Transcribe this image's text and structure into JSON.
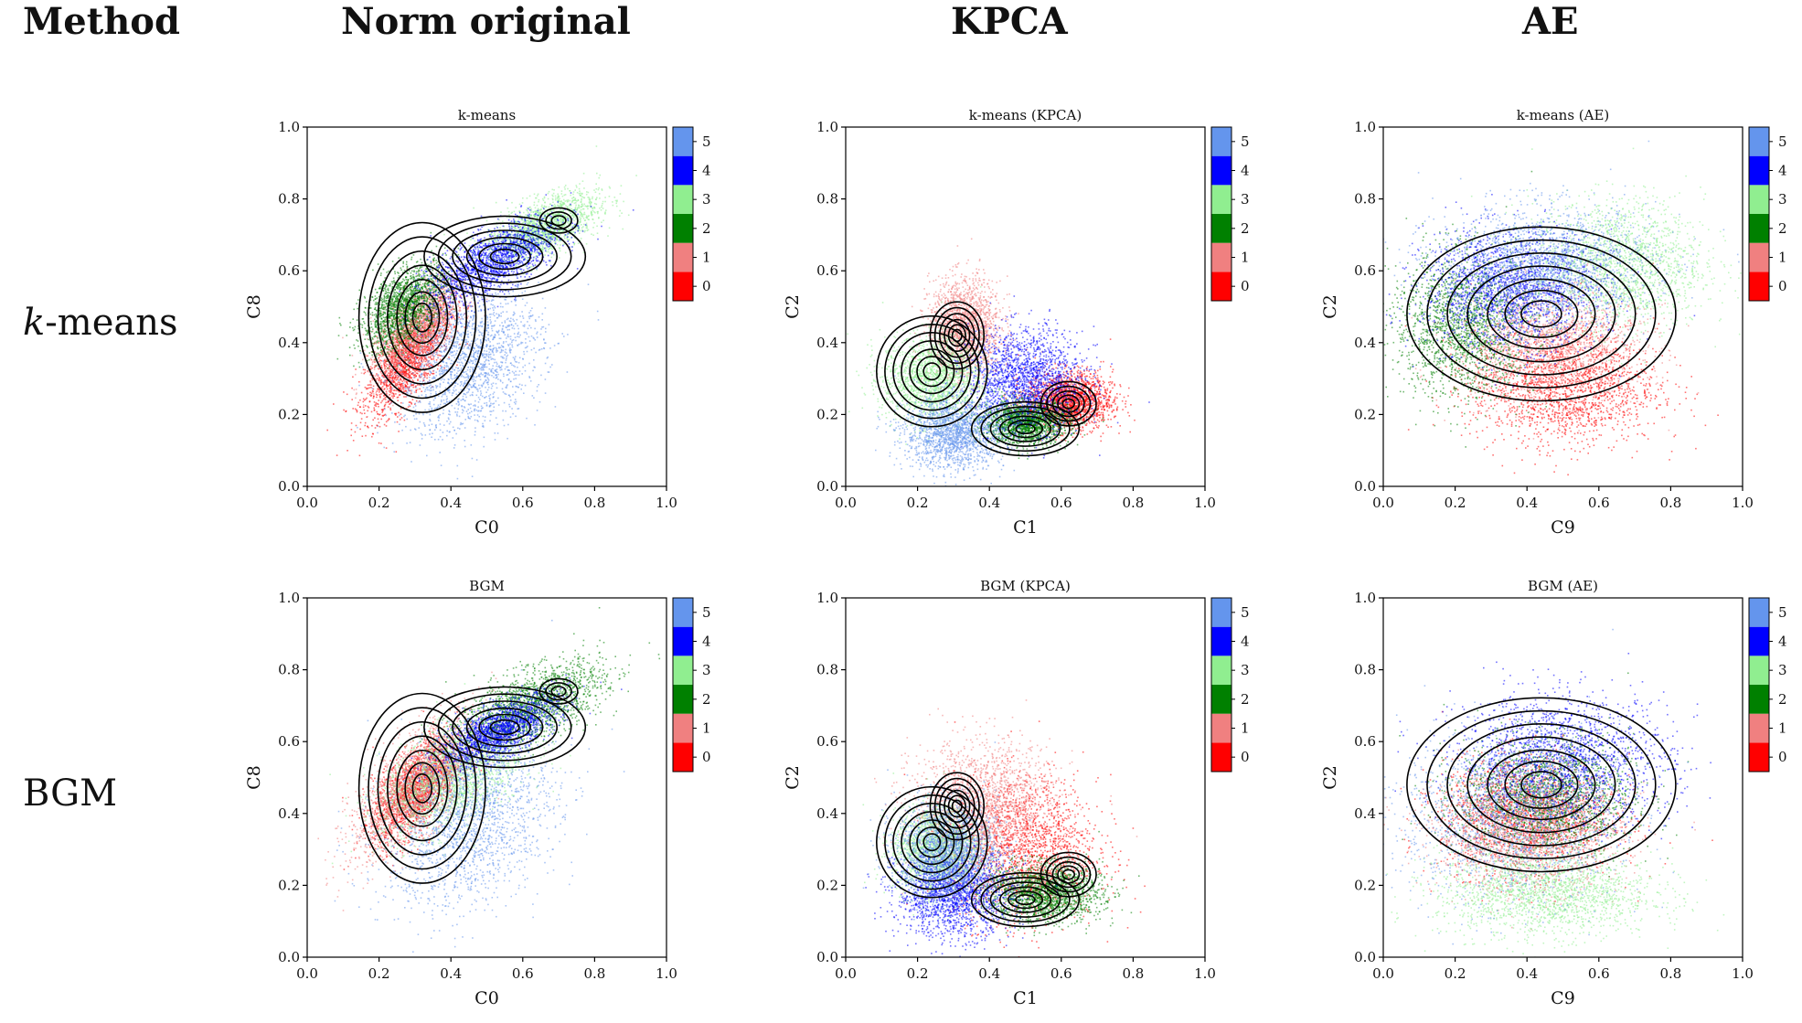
{
  "header": {
    "method": "Method",
    "columns": [
      "Norm original",
      "KPCA",
      "AE"
    ]
  },
  "rows": [
    {
      "label_italic": "k",
      "label_rest": "-means"
    },
    {
      "label_italic": "",
      "label_rest": "BGM"
    }
  ],
  "colorbar": {
    "ticks": [
      "0",
      "1",
      "2",
      "3",
      "4",
      "5"
    ],
    "colors": [
      "#ff0000",
      "#f08080",
      "#008000",
      "#90ee90",
      "#0000ff",
      "#6495ed"
    ]
  },
  "chart_data": [
    {
      "type": "scatter",
      "title": "k-means",
      "xlabel": "C0",
      "ylabel": "C8",
      "xlim": [
        0,
        1
      ],
      "ylim": [
        0,
        1
      ],
      "xticks": [
        "0.0",
        "0.2",
        "0.4",
        "0.6",
        "0.8",
        "1.0"
      ],
      "yticks": [
        "0.0",
        "0.2",
        "0.4",
        "0.6",
        "0.8",
        "1.0"
      ],
      "clusters": [
        {
          "label": "0",
          "center": [
            0.28,
            0.36
          ],
          "spread": [
            0.06,
            0.08
          ],
          "corr": 0.7
        },
        {
          "label": "1",
          "center": [
            0.3,
            0.44
          ],
          "spread": [
            0.06,
            0.07
          ],
          "corr": 0.6
        },
        {
          "label": "2",
          "center": [
            0.27,
            0.5
          ],
          "spread": [
            0.06,
            0.06
          ],
          "corr": 0.5
        },
        {
          "label": "3",
          "center": [
            0.65,
            0.72
          ],
          "spread": [
            0.08,
            0.05
          ],
          "corr": 0.6
        },
        {
          "label": "4",
          "center": [
            0.52,
            0.63
          ],
          "spread": [
            0.09,
            0.06
          ],
          "corr": 0.7
        },
        {
          "label": "5",
          "center": [
            0.45,
            0.35
          ],
          "spread": [
            0.1,
            0.1
          ],
          "corr": 0.3
        }
      ],
      "density_peaks": [
        {
          "center": [
            0.32,
            0.47
          ],
          "spread": [
            0.08,
            0.12
          ],
          "weight": 1.0
        },
        {
          "center": [
            0.55,
            0.64
          ],
          "spread": [
            0.12,
            0.06
          ],
          "weight": 0.8
        },
        {
          "center": [
            0.7,
            0.74
          ],
          "spread": [
            0.06,
            0.04
          ],
          "weight": 0.4
        }
      ]
    },
    {
      "type": "scatter",
      "title": "k-means (KPCA)",
      "xlabel": "C1",
      "ylabel": "C2",
      "xlim": [
        0,
        1
      ],
      "ylim": [
        0,
        1
      ],
      "xticks": [
        "0.0",
        "0.2",
        "0.4",
        "0.6",
        "0.8",
        "1.0"
      ],
      "yticks": [
        "0.0",
        "0.2",
        "0.4",
        "0.6",
        "0.8",
        "1.0"
      ],
      "clusters": [
        {
          "label": "0",
          "center": [
            0.62,
            0.24
          ],
          "spread": [
            0.06,
            0.04
          ],
          "corr": 0.0
        },
        {
          "label": "1",
          "center": [
            0.33,
            0.44
          ],
          "spread": [
            0.05,
            0.07
          ],
          "corr": 0.0
        },
        {
          "label": "2",
          "center": [
            0.5,
            0.18
          ],
          "spread": [
            0.06,
            0.03
          ],
          "corr": 0.0
        },
        {
          "label": "3",
          "center": [
            0.24,
            0.3
          ],
          "spread": [
            0.07,
            0.06
          ],
          "corr": 0.0
        },
        {
          "label": "4",
          "center": [
            0.5,
            0.3
          ],
          "spread": [
            0.08,
            0.07
          ],
          "corr": 0.0
        },
        {
          "label": "5",
          "center": [
            0.3,
            0.15
          ],
          "spread": [
            0.07,
            0.05
          ],
          "corr": 0.0
        }
      ],
      "density_peaks": [
        {
          "center": [
            0.24,
            0.32
          ],
          "spread": [
            0.07,
            0.07
          ],
          "weight": 1.0
        },
        {
          "center": [
            0.31,
            0.42
          ],
          "spread": [
            0.04,
            0.05
          ],
          "weight": 0.8
        },
        {
          "center": [
            0.5,
            0.16
          ],
          "spread": [
            0.08,
            0.04
          ],
          "weight": 0.9
        },
        {
          "center": [
            0.62,
            0.23
          ],
          "spread": [
            0.05,
            0.04
          ],
          "weight": 0.7
        }
      ]
    },
    {
      "type": "scatter",
      "title": "k-means (AE)",
      "xlabel": "C9",
      "ylabel": "C2",
      "xlim": [
        0,
        1
      ],
      "ylim": [
        0,
        1
      ],
      "xticks": [
        "0.0",
        "0.2",
        "0.4",
        "0.6",
        "0.8",
        "1.0"
      ],
      "yticks": [
        "0.0",
        "0.2",
        "0.4",
        "0.6",
        "0.8",
        "1.0"
      ],
      "clusters": [
        {
          "label": "0",
          "center": [
            0.5,
            0.28
          ],
          "spread": [
            0.13,
            0.08
          ],
          "corr": 0.0
        },
        {
          "label": "1",
          "center": [
            0.46,
            0.4
          ],
          "spread": [
            0.13,
            0.08
          ],
          "corr": 0.0
        },
        {
          "label": "2",
          "center": [
            0.22,
            0.45
          ],
          "spread": [
            0.1,
            0.1
          ],
          "corr": 0.0
        },
        {
          "label": "3",
          "center": [
            0.65,
            0.62
          ],
          "spread": [
            0.12,
            0.09
          ],
          "corr": 0.0
        },
        {
          "label": "4",
          "center": [
            0.35,
            0.55
          ],
          "spread": [
            0.12,
            0.08
          ],
          "corr": 0.0
        },
        {
          "label": "5",
          "center": [
            0.45,
            0.62
          ],
          "spread": [
            0.15,
            0.08
          ],
          "corr": 0.0
        }
      ],
      "density_peaks": [
        {
          "center": [
            0.44,
            0.48
          ],
          "spread": [
            0.17,
            0.11
          ],
          "weight": 1.0
        }
      ]
    },
    {
      "type": "scatter",
      "title": "BGM",
      "xlabel": "C0",
      "ylabel": "C8",
      "xlim": [
        0,
        1
      ],
      "ylim": [
        0,
        1
      ],
      "xticks": [
        "0.0",
        "0.2",
        "0.4",
        "0.6",
        "0.8",
        "1.0"
      ],
      "yticks": [
        "0.0",
        "0.2",
        "0.4",
        "0.6",
        "0.8",
        "1.0"
      ],
      "clusters": [
        {
          "label": "0",
          "center": [
            0.3,
            0.47
          ],
          "spread": [
            0.06,
            0.07
          ],
          "corr": 0.6
        },
        {
          "label": "1",
          "center": [
            0.3,
            0.48
          ],
          "spread": [
            0.09,
            0.1
          ],
          "corr": 0.7
        },
        {
          "label": "2",
          "center": [
            0.62,
            0.7
          ],
          "spread": [
            0.1,
            0.06
          ],
          "corr": 0.6
        },
        {
          "label": "3",
          "center": [
            0.4,
            0.5
          ],
          "spread": [
            0.1,
            0.08
          ],
          "corr": 0.5
        },
        {
          "label": "4",
          "center": [
            0.53,
            0.63
          ],
          "spread": [
            0.08,
            0.05
          ],
          "corr": 0.7
        },
        {
          "label": "5",
          "center": [
            0.45,
            0.38
          ],
          "spread": [
            0.12,
            0.12
          ],
          "corr": 0.3
        }
      ],
      "density_peaks": [
        {
          "center": [
            0.32,
            0.47
          ],
          "spread": [
            0.08,
            0.12
          ],
          "weight": 1.0
        },
        {
          "center": [
            0.55,
            0.64
          ],
          "spread": [
            0.12,
            0.06
          ],
          "weight": 0.8
        },
        {
          "center": [
            0.7,
            0.74
          ],
          "spread": [
            0.06,
            0.04
          ],
          "weight": 0.4
        }
      ]
    },
    {
      "type": "scatter",
      "title": "BGM (KPCA)",
      "xlabel": "C1",
      "ylabel": "C2",
      "xlim": [
        0,
        1
      ],
      "ylim": [
        0,
        1
      ],
      "xticks": [
        "0.0",
        "0.2",
        "0.4",
        "0.6",
        "0.8",
        "1.0"
      ],
      "yticks": [
        "0.0",
        "0.2",
        "0.4",
        "0.6",
        "0.8",
        "1.0"
      ],
      "clusters": [
        {
          "label": "0",
          "center": [
            0.5,
            0.3
          ],
          "spread": [
            0.1,
            0.1
          ],
          "corr": 0.0
        },
        {
          "label": "1",
          "center": [
            0.38,
            0.42
          ],
          "spread": [
            0.1,
            0.09
          ],
          "corr": 0.0
        },
        {
          "label": "2",
          "center": [
            0.55,
            0.18
          ],
          "spread": [
            0.08,
            0.04
          ],
          "corr": 0.0
        },
        {
          "label": "3",
          "center": [
            0.25,
            0.3
          ],
          "spread": [
            0.06,
            0.06
          ],
          "corr": 0.0
        },
        {
          "label": "4",
          "center": [
            0.3,
            0.18
          ],
          "spread": [
            0.08,
            0.06
          ],
          "corr": 0.0
        },
        {
          "label": "5",
          "center": [
            0.28,
            0.3
          ],
          "spread": [
            0.07,
            0.07
          ],
          "corr": 0.0
        }
      ],
      "density_peaks": [
        {
          "center": [
            0.24,
            0.32
          ],
          "spread": [
            0.07,
            0.07
          ],
          "weight": 1.0
        },
        {
          "center": [
            0.31,
            0.42
          ],
          "spread": [
            0.04,
            0.05
          ],
          "weight": 0.8
        },
        {
          "center": [
            0.5,
            0.16
          ],
          "spread": [
            0.08,
            0.04
          ],
          "weight": 0.9
        },
        {
          "center": [
            0.62,
            0.23
          ],
          "spread": [
            0.05,
            0.04
          ],
          "weight": 0.7
        }
      ]
    },
    {
      "type": "scatter",
      "title": "BGM (AE)",
      "xlabel": "C9",
      "ylabel": "C2",
      "xlim": [
        0,
        1
      ],
      "ylim": [
        0,
        1
      ],
      "xticks": [
        "0.0",
        "0.2",
        "0.4",
        "0.6",
        "0.8",
        "1.0"
      ],
      "yticks": [
        "0.0",
        "0.2",
        "0.4",
        "0.6",
        "0.8",
        "1.0"
      ],
      "clusters": [
        {
          "label": "0",
          "center": [
            0.4,
            0.4
          ],
          "spread": [
            0.12,
            0.08
          ],
          "corr": 0.0
        },
        {
          "label": "1",
          "center": [
            0.4,
            0.35
          ],
          "spread": [
            0.13,
            0.08
          ],
          "corr": 0.0
        },
        {
          "label": "2",
          "center": [
            0.45,
            0.45
          ],
          "spread": [
            0.12,
            0.08
          ],
          "corr": 0.0
        },
        {
          "label": "3",
          "center": [
            0.45,
            0.18
          ],
          "spread": [
            0.15,
            0.06
          ],
          "corr": 0.0
        },
        {
          "label": "4",
          "center": [
            0.5,
            0.55
          ],
          "spread": [
            0.15,
            0.09
          ],
          "corr": 0.0
        },
        {
          "label": "5",
          "center": [
            0.35,
            0.4
          ],
          "spread": [
            0.15,
            0.12
          ],
          "corr": 0.0
        }
      ],
      "density_peaks": [
        {
          "center": [
            0.44,
            0.48
          ],
          "spread": [
            0.17,
            0.11
          ],
          "weight": 1.0
        }
      ]
    }
  ]
}
